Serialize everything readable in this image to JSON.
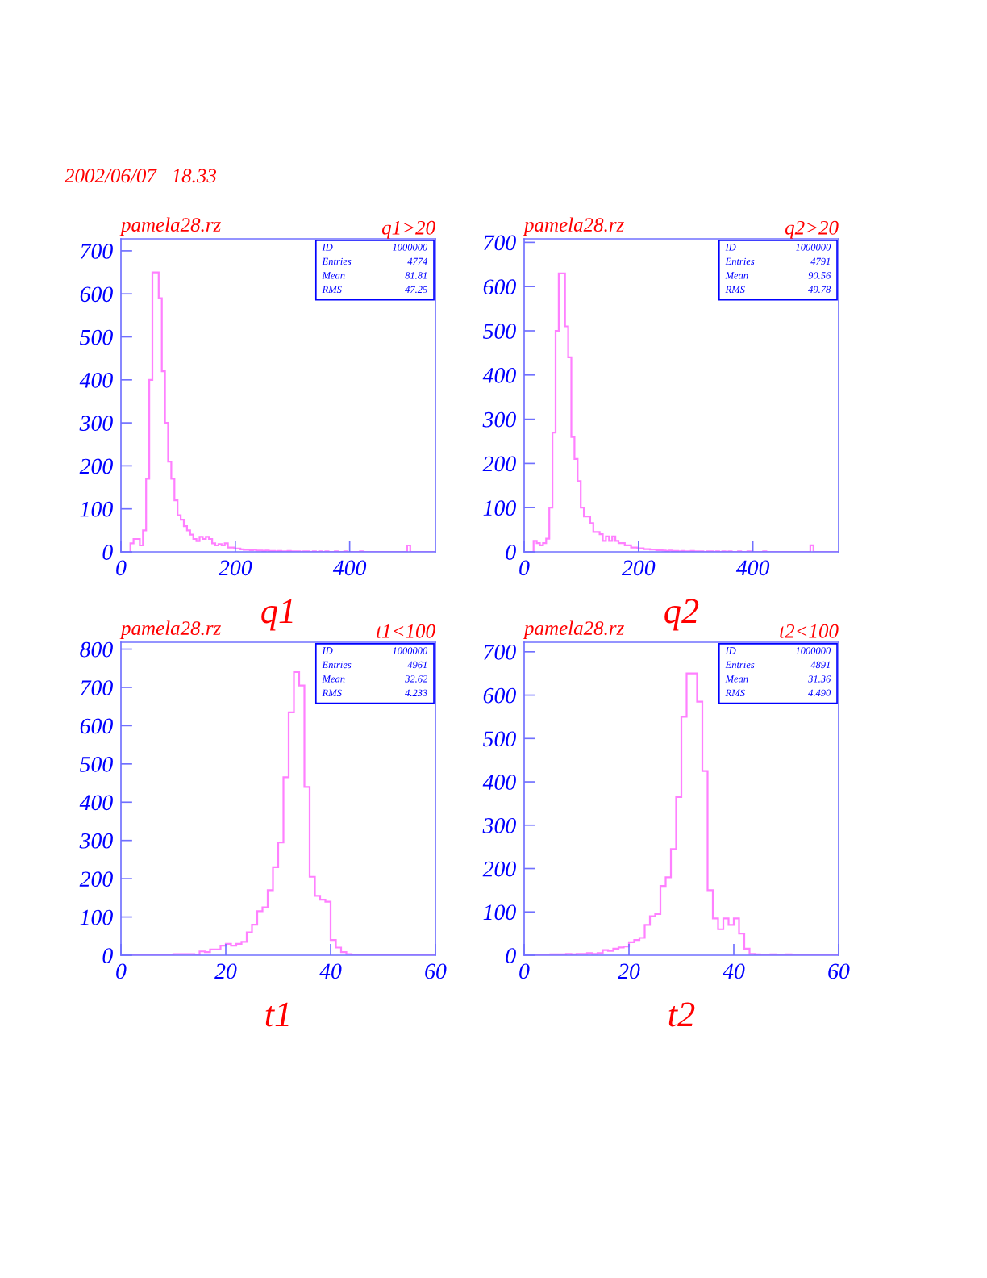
{
  "chart_data": [
    {
      "type": "histogram",
      "title": "q1>20",
      "subtitle": "2002/06/07   18.33",
      "xlabel": "q1",
      "color": "#ff80ff",
      "annotations": [
        "pamela28.rz",
        "ID",
        "1000000",
        "Entries",
        "4774",
        "Mean",
        "81.81",
        "RMS",
        "47.25"
      ],
      "bins": [
        0,
        5.5,
        11,
        16.5,
        22,
        27.5,
        33,
        38.5,
        44,
        49.5,
        55,
        60.5,
        66,
        71.5,
        77,
        82.5,
        88,
        93.5,
        99,
        104.5,
        110,
        115.5,
        121,
        126.5,
        132,
        137.5,
        143,
        148.5,
        154,
        159.5,
        165,
        170.5,
        176,
        181.5,
        187,
        192.5,
        198,
        203.5,
        209,
        214.5,
        220,
        225.5,
        231,
        236.5,
        242,
        247.5,
        253,
        258.5,
        264,
        269.5,
        275,
        280.5,
        286,
        291.5,
        297,
        302.5,
        308,
        313.5,
        319,
        324.5,
        330,
        335.5,
        341,
        346.5,
        352,
        357.5,
        363,
        368.5,
        374,
        379.5,
        385,
        390.5,
        396,
        401.5,
        407,
        412.5,
        418,
        423.5,
        429,
        434.5,
        440,
        445.5,
        451,
        456.5,
        462,
        467.5,
        473,
        478.5,
        484,
        489.5,
        495,
        500.5,
        506,
        511.5,
        517,
        522.5,
        528,
        533.5,
        539,
        544.5,
        550
      ],
      "values": [
        0,
        0,
        0,
        20,
        30,
        30,
        15,
        50,
        170,
        400,
        650,
        650,
        590,
        420,
        300,
        210,
        170,
        120,
        85,
        75,
        60,
        50,
        40,
        30,
        25,
        35,
        30,
        35,
        30,
        20,
        15,
        18,
        15,
        20,
        10,
        10,
        8,
        8,
        6,
        5,
        5,
        4,
        5,
        3,
        3,
        2,
        3,
        2,
        2,
        1,
        2,
        1,
        1,
        2,
        1,
        1,
        1,
        0,
        1,
        1,
        0,
        1,
        0,
        1,
        0,
        1,
        0,
        0,
        1,
        0,
        0,
        1,
        0,
        0,
        0,
        0,
        1,
        0,
        0,
        0,
        0,
        0,
        0,
        0,
        0,
        0,
        0,
        0,
        0,
        0,
        0,
        15,
        0,
        0,
        0,
        0,
        0,
        0,
        0,
        0
      ],
      "xlim": [
        0,
        550
      ],
      "ylim": [
        0,
        728
      ],
      "xticks": [
        0,
        200,
        400
      ],
      "yticks": [
        0,
        100,
        200,
        300,
        400,
        500,
        600,
        700
      ],
      "grid": false
    },
    {
      "type": "histogram",
      "title": "q2>20",
      "xlabel": "q2",
      "color": "#ff80ff",
      "annotations": [
        "pamela28.rz",
        "ID",
        "1000000",
        "Entries",
        "4791",
        "Mean",
        "90.56",
        "RMS",
        "49.78"
      ],
      "bins": [
        0,
        5.5,
        11,
        16.5,
        22,
        27.5,
        33,
        38.5,
        44,
        49.5,
        55,
        60.5,
        66,
        71.5,
        77,
        82.5,
        88,
        93.5,
        99,
        104.5,
        110,
        115.5,
        121,
        126.5,
        132,
        137.5,
        143,
        148.5,
        154,
        159.5,
        165,
        170.5,
        176,
        181.5,
        187,
        192.5,
        198,
        203.5,
        209,
        214.5,
        220,
        225.5,
        231,
        236.5,
        242,
        247.5,
        253,
        258.5,
        264,
        269.5,
        275,
        280.5,
        286,
        291.5,
        297,
        302.5,
        308,
        313.5,
        319,
        324.5,
        330,
        335.5,
        341,
        346.5,
        352,
        357.5,
        363,
        368.5,
        374,
        379.5,
        385,
        390.5,
        396,
        401.5,
        407,
        412.5,
        418,
        423.5,
        429,
        434.5,
        440,
        445.5,
        451,
        456.5,
        462,
        467.5,
        473,
        478.5,
        484,
        489.5,
        495,
        500.5,
        506,
        511.5,
        517,
        522.5,
        528,
        533.5,
        539,
        544.5,
        550
      ],
      "values": [
        0,
        0,
        0,
        25,
        20,
        15,
        20,
        30,
        100,
        270,
        500,
        630,
        630,
        510,
        440,
        260,
        210,
        160,
        100,
        80,
        80,
        65,
        45,
        45,
        40,
        25,
        35,
        25,
        35,
        25,
        20,
        20,
        15,
        15,
        10,
        10,
        8,
        8,
        6,
        6,
        5,
        5,
        4,
        4,
        3,
        2,
        3,
        2,
        2,
        1,
        2,
        1,
        1,
        2,
        1,
        1,
        1,
        0,
        1,
        1,
        0,
        1,
        0,
        1,
        0,
        1,
        0,
        0,
        1,
        0,
        0,
        1,
        0,
        0,
        0,
        0,
        1,
        0,
        0,
        0,
        0,
        0,
        0,
        0,
        0,
        0,
        0,
        0,
        0,
        0,
        0,
        15,
        0,
        0,
        0,
        0,
        0,
        0,
        0,
        0
      ],
      "xlim": [
        0,
        550
      ],
      "ylim": [
        0,
        708
      ],
      "xticks": [
        0,
        200,
        400
      ],
      "yticks": [
        0,
        100,
        200,
        300,
        400,
        500,
        600,
        700
      ],
      "grid": false
    },
    {
      "type": "histogram",
      "title": "t1<100",
      "xlabel": "t1",
      "color": "#ff80ff",
      "annotations": [
        "pamela28.rz",
        "ID",
        "1000000",
        "Entries",
        "4961",
        "Mean",
        "32.62",
        "RMS",
        "4.233"
      ],
      "bins": [
        0,
        1,
        2,
        3,
        4,
        5,
        6,
        7,
        8,
        9,
        10,
        11,
        12,
        13,
        14,
        15,
        16,
        17,
        18,
        19,
        20,
        21,
        22,
        23,
        24,
        25,
        26,
        27,
        28,
        29,
        30,
        31,
        32,
        33,
        34,
        35,
        36,
        37,
        38,
        39,
        40,
        41,
        42,
        43,
        44,
        45,
        46,
        47,
        48,
        49,
        50,
        51,
        52,
        53,
        54,
        55,
        56,
        57,
        58,
        59,
        60
      ],
      "values": [
        0,
        0,
        0,
        0,
        0,
        0,
        0,
        2,
        2,
        2,
        3,
        3,
        3,
        3,
        0,
        10,
        8,
        15,
        15,
        25,
        30,
        25,
        30,
        35,
        60,
        80,
        115,
        125,
        170,
        230,
        295,
        465,
        635,
        740,
        705,
        440,
        205,
        155,
        145,
        140,
        40,
        20,
        8,
        3,
        2,
        0,
        1,
        0,
        0,
        0,
        2,
        2,
        1,
        0,
        0,
        0,
        0,
        2,
        1,
        0
      ],
      "xlim": [
        0,
        60
      ],
      "ylim": [
        0,
        818
      ],
      "xticks": [
        0,
        20,
        40,
        60
      ],
      "yticks": [
        0,
        100,
        200,
        300,
        400,
        500,
        600,
        700,
        800
      ],
      "grid": false
    },
    {
      "type": "histogram",
      "title": "t2<100",
      "xlabel": "t2",
      "color": "#ff80ff",
      "annotations": [
        "pamela28.rz",
        "ID",
        "1000000",
        "Entries",
        "4891",
        "Mean",
        "31.36",
        "RMS",
        "4.490"
      ],
      "bins": [
        0,
        1,
        2,
        3,
        4,
        5,
        6,
        7,
        8,
        9,
        10,
        11,
        12,
        13,
        14,
        15,
        16,
        17,
        18,
        19,
        20,
        21,
        22,
        23,
        24,
        25,
        26,
        27,
        28,
        29,
        30,
        31,
        32,
        33,
        34,
        35,
        36,
        37,
        38,
        39,
        40,
        41,
        42,
        43,
        44,
        45,
        46,
        47,
        48,
        49,
        50,
        51,
        52,
        53,
        54,
        55,
        56,
        57,
        58,
        59,
        60
      ],
      "values": [
        0,
        0,
        0,
        0,
        0,
        2,
        2,
        2,
        3,
        2,
        3,
        3,
        5,
        3,
        5,
        12,
        10,
        15,
        18,
        20,
        30,
        35,
        40,
        70,
        90,
        95,
        160,
        180,
        245,
        365,
        550,
        650,
        650,
        585,
        425,
        150,
        85,
        60,
        85,
        70,
        85,
        50,
        15,
        3,
        2,
        0,
        0,
        2,
        0,
        0,
        2,
        0,
        0,
        0,
        0,
        0,
        0,
        0,
        0,
        0
      ],
      "xlim": [
        0,
        60
      ],
      "ylim": [
        0,
        722
      ],
      "xticks": [
        0,
        20,
        40,
        60
      ],
      "yticks": [
        0,
        100,
        200,
        300,
        400,
        500,
        600,
        700
      ],
      "grid": false
    }
  ]
}
